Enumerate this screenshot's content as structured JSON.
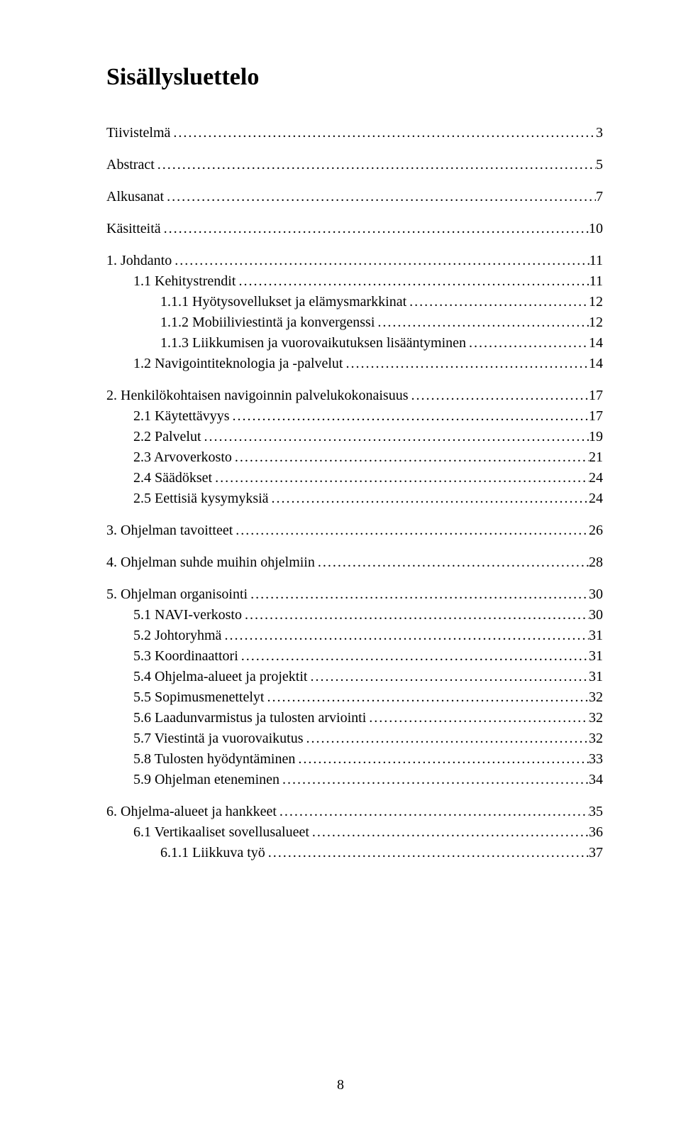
{
  "title": "Sisällysluettelo",
  "page_number": "8",
  "font_family": "Times New Roman",
  "font_size_body": 20,
  "font_size_title": 34,
  "text_color": "#000000",
  "background_color": "#ffffff",
  "toc": [
    {
      "label": "Tiivistelmä",
      "page": "3",
      "level": 0,
      "gap_before": false
    },
    {
      "label": "Abstract",
      "page": "5",
      "level": 0,
      "gap_before": true
    },
    {
      "label": "Alkusanat",
      "page": "7",
      "level": 0,
      "gap_before": true
    },
    {
      "label": "Käsitteitä",
      "page": "10",
      "level": 0,
      "gap_before": true
    },
    {
      "label": "1. Johdanto",
      "page": "11",
      "level": 0,
      "gap_before": true
    },
    {
      "label": "1.1  Kehitystrendit",
      "page": "11",
      "level": 1,
      "gap_before": false
    },
    {
      "label": "1.1.1  Hyötysovellukset ja elämysmarkkinat",
      "page": "12",
      "level": 2,
      "gap_before": false
    },
    {
      "label": "1.1.2  Mobiiliviestintä ja konvergenssi",
      "page": "12",
      "level": 2,
      "gap_before": false
    },
    {
      "label": "1.1.3  Liikkumisen ja vuorovaikutuksen lisääntyminen",
      "page": "14",
      "level": 2,
      "gap_before": false
    },
    {
      "label": "1.2  Navigointiteknologia ja -palvelut",
      "page": "14",
      "level": 1,
      "gap_before": false
    },
    {
      "label": "2. Henkilökohtaisen navigoinnin palvelukokonaisuus",
      "page": "17",
      "level": 0,
      "gap_before": true
    },
    {
      "label": "2.1  Käytettävyys",
      "page": "17",
      "level": 1,
      "gap_before": false
    },
    {
      "label": "2.2  Palvelut",
      "page": "19",
      "level": 1,
      "gap_before": false
    },
    {
      "label": "2.3  Arvoverkosto",
      "page": "21",
      "level": 1,
      "gap_before": false
    },
    {
      "label": "2.4  Säädökset",
      "page": "24",
      "level": 1,
      "gap_before": false
    },
    {
      "label": "2.5  Eettisiä kysymyksiä",
      "page": "24",
      "level": 1,
      "gap_before": false
    },
    {
      "label": "3. Ohjelman tavoitteet",
      "page": "26",
      "level": 0,
      "gap_before": true
    },
    {
      "label": "4. Ohjelman suhde muihin ohjelmiin",
      "page": "28",
      "level": 0,
      "gap_before": true
    },
    {
      "label": "5. Ohjelman organisointi",
      "page": "30",
      "level": 0,
      "gap_before": true
    },
    {
      "label": "5.1  NAVI-verkosto",
      "page": "30",
      "level": 1,
      "gap_before": false
    },
    {
      "label": "5.2  Johtoryhmä",
      "page": "31",
      "level": 1,
      "gap_before": false
    },
    {
      "label": "5.3  Koordinaattori",
      "page": "31",
      "level": 1,
      "gap_before": false
    },
    {
      "label": "5.4  Ohjelma-alueet ja projektit",
      "page": "31",
      "level": 1,
      "gap_before": false
    },
    {
      "label": "5.5  Sopimusmenettelyt",
      "page": "32",
      "level": 1,
      "gap_before": false
    },
    {
      "label": "5.6  Laadunvarmistus ja tulosten arviointi",
      "page": "32",
      "level": 1,
      "gap_before": false
    },
    {
      "label": "5.7  Viestintä ja vuorovaikutus",
      "page": "32",
      "level": 1,
      "gap_before": false
    },
    {
      "label": "5.8  Tulosten hyödyntäminen",
      "page": "33",
      "level": 1,
      "gap_before": false
    },
    {
      "label": "5.9  Ohjelman eteneminen",
      "page": "34",
      "level": 1,
      "gap_before": false
    },
    {
      "label": "6. Ohjelma-alueet ja hankkeet",
      "page": "35",
      "level": 0,
      "gap_before": true
    },
    {
      "label": "6.1  Vertikaaliset sovellusalueet",
      "page": "36",
      "level": 1,
      "gap_before": false
    },
    {
      "label": "6.1.1  Liikkuva työ",
      "page": "37",
      "level": 2,
      "gap_before": false
    }
  ]
}
